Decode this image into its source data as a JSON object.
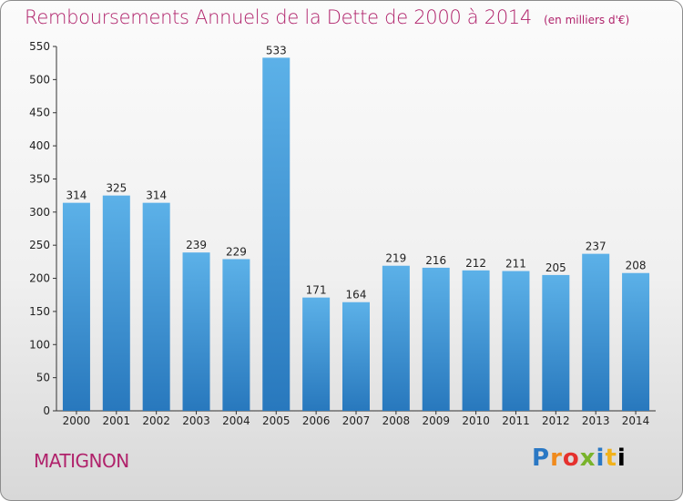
{
  "header": {
    "title": "Remboursements Annuels de la Dette de 2000 à 2014",
    "unit": "(en milliers d'€)"
  },
  "footer": {
    "commune": "MATIGNON",
    "brand": "Proxiti"
  },
  "colors": {
    "title": "#b0226b",
    "bar_light": "#5aaee6",
    "bar_dark": "#2a7cc0",
    "axis": "#333333"
  },
  "chart_data": {
    "type": "bar",
    "title": "Remboursements Annuels de la Dette de 2000 à 2014",
    "subtitle": "(en milliers d'€)",
    "xlabel": "",
    "ylabel": "",
    "categories": [
      "2000",
      "2001",
      "2002",
      "2003",
      "2004",
      "2005",
      "2006",
      "2007",
      "2008",
      "2009",
      "2010",
      "2011",
      "2012",
      "2013",
      "2014"
    ],
    "values": [
      314,
      325,
      314,
      239,
      229,
      533,
      171,
      164,
      219,
      216,
      212,
      211,
      205,
      237,
      208
    ],
    "ylim": [
      0,
      550
    ],
    "yticks": [
      0,
      50,
      100,
      150,
      200,
      250,
      300,
      350,
      400,
      450,
      500,
      550
    ],
    "grid": false,
    "data_labels": true
  }
}
